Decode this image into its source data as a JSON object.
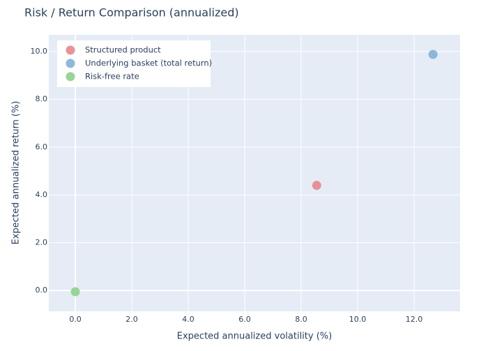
{
  "chart_data": {
    "type": "scatter",
    "title": "Risk / Return Comparison (annualized)",
    "x_label": "Expected annualized volatility (%)",
    "y_label": "Expected annualized return (%)",
    "series": [
      {
        "name": "Structured product",
        "color": "#e8868d",
        "x": [
          8.55
        ],
        "values": [
          4.4
        ]
      },
      {
        "name": "Underlying basket (total return)",
        "color": "#7fb1d9",
        "x": [
          12.67
        ],
        "values": [
          9.88
        ]
      },
      {
        "name": "Risk-free rate",
        "color": "#8fd08b",
        "x": [
          0
        ],
        "values": [
          -0.05
        ]
      }
    ],
    "xlim": [
      -0.94,
      13.63
    ],
    "ylim": [
      -0.87,
      10.7
    ],
    "xticks": [
      {
        "value": 0,
        "label": "0.0"
      },
      {
        "value": 2,
        "label": "2.0"
      },
      {
        "value": 4,
        "label": "4.0"
      },
      {
        "value": 6,
        "label": "6.0"
      },
      {
        "value": 8,
        "label": "8.0"
      },
      {
        "value": 10,
        "label": "10.0"
      },
      {
        "value": 12,
        "label": "12.0"
      }
    ],
    "yticks": [
      {
        "value": 0,
        "label": "0.0"
      },
      {
        "value": 2,
        "label": "2.0"
      },
      {
        "value": 4,
        "label": "4.0"
      },
      {
        "value": 6,
        "label": "6.0"
      },
      {
        "value": 8,
        "label": "8.0"
      },
      {
        "value": 10,
        "label": "10.0"
      }
    ],
    "grid": true,
    "legend": "top-left"
  }
}
